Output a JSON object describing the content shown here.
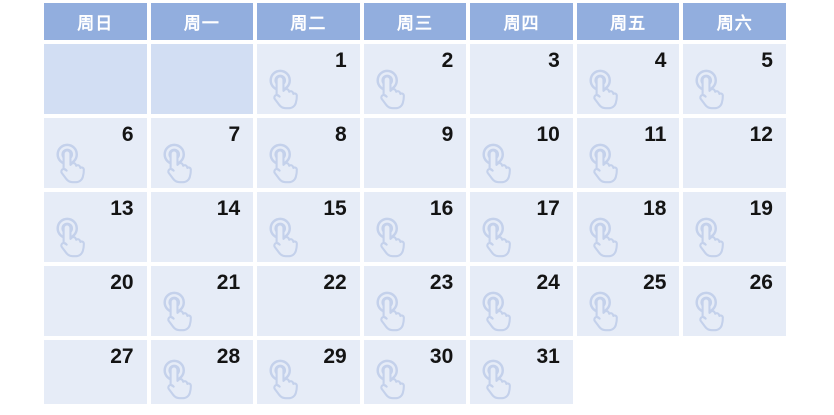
{
  "calendar": {
    "weekday_headers": [
      "周日",
      "周一",
      "周二",
      "周三",
      "周四",
      "周五",
      "周六"
    ],
    "weeks": [
      [
        {
          "day": "",
          "empty": true,
          "icon": false
        },
        {
          "day": "",
          "empty": true,
          "icon": false
        },
        {
          "day": "1",
          "icon": true
        },
        {
          "day": "2",
          "icon": true
        },
        {
          "day": "3",
          "icon": false
        },
        {
          "day": "4",
          "icon": true
        },
        {
          "day": "5",
          "icon": true
        }
      ],
      [
        {
          "day": "6",
          "icon": true
        },
        {
          "day": "7",
          "icon": true
        },
        {
          "day": "8",
          "icon": true
        },
        {
          "day": "9",
          "icon": false
        },
        {
          "day": "10",
          "icon": true
        },
        {
          "day": "11",
          "icon": true
        },
        {
          "day": "12",
          "icon": false
        }
      ],
      [
        {
          "day": "13",
          "icon": true
        },
        {
          "day": "14",
          "icon": false
        },
        {
          "day": "15",
          "icon": true
        },
        {
          "day": "16",
          "icon": true
        },
        {
          "day": "17",
          "icon": true
        },
        {
          "day": "18",
          "icon": true
        },
        {
          "day": "19",
          "icon": true
        }
      ],
      [
        {
          "day": "20",
          "icon": false
        },
        {
          "day": "21",
          "icon": true
        },
        {
          "day": "22",
          "icon": false
        },
        {
          "day": "23",
          "icon": true
        },
        {
          "day": "24",
          "icon": true
        },
        {
          "day": "25",
          "icon": true
        },
        {
          "day": "26",
          "icon": true
        }
      ],
      [
        {
          "day": "27",
          "icon": false
        },
        {
          "day": "28",
          "icon": true
        },
        {
          "day": "29",
          "icon": true
        },
        {
          "day": "30",
          "icon": true
        },
        {
          "day": "31",
          "icon": true
        },
        {
          "day": "",
          "absent": true,
          "icon": false
        },
        {
          "day": "",
          "absent": true,
          "icon": false
        }
      ]
    ],
    "colors": {
      "header_bg": "#92aede",
      "header_text": "#ffffff",
      "lead_cell_bg": "#d2def3",
      "day_cell_bg": "#e6ecf7",
      "day_text": "#141414",
      "icon_stroke": "#bfcdea",
      "page_bg": "#ffffff"
    },
    "icon_name": "tap-hand-icon"
  }
}
